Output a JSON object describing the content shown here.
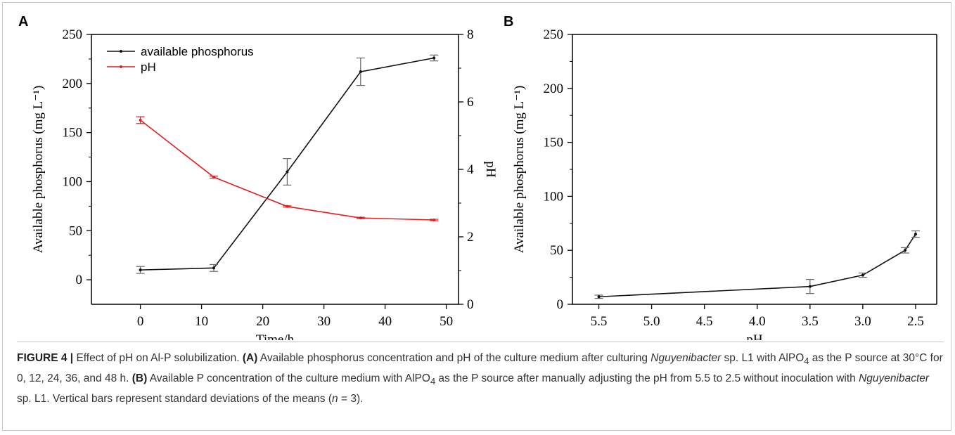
{
  "panels": [
    {
      "letter": "A"
    },
    {
      "letter": "B"
    }
  ],
  "chart_data": [
    {
      "type": "line",
      "panel": "A",
      "xlabel": "Time/h",
      "ylabel": "Available phosphorus (mg L⁻¹)",
      "y2label": "pH",
      "xlim": [
        -8,
        52
      ],
      "ylim": [
        -25,
        250
      ],
      "y2lim": [
        0,
        8
      ],
      "xticks": [
        0,
        10,
        20,
        30,
        40,
        50
      ],
      "yticks": [
        0,
        50,
        100,
        150,
        200,
        250
      ],
      "y2ticks": [
        0,
        2,
        4,
        6,
        8
      ],
      "legend_position": "top-left",
      "series": [
        {
          "name": "available phosphorus",
          "axis": "left",
          "color": "#111111",
          "x": [
            0,
            12,
            24,
            36,
            48
          ],
          "y": [
            10,
            12,
            110,
            212,
            226
          ],
          "err": [
            3.5,
            3.5,
            13.5,
            14,
            3
          ]
        },
        {
          "name": "pH",
          "axis": "right",
          "color": "#e02020",
          "x": [
            0,
            12,
            24,
            36,
            48
          ],
          "y": [
            5.46,
            3.77,
            2.9,
            2.56,
            2.5
          ],
          "err": [
            0.1,
            0.03,
            0.02,
            0.02,
            0.02
          ]
        }
      ]
    },
    {
      "type": "line",
      "panel": "B",
      "xlabel": "pH",
      "ylabel": "Available phosphorus (mg L⁻¹)",
      "xlim": [
        5.75,
        2.3
      ],
      "ylim": [
        0,
        250
      ],
      "xticks": [
        5.5,
        5.0,
        4.5,
        4.0,
        3.5,
        3.0,
        2.5
      ],
      "xtick_labels": [
        "5.5",
        "5.0",
        "4.5",
        "4.0",
        "3.5",
        "3.0",
        "2.5"
      ],
      "yticks": [
        0,
        50,
        100,
        150,
        200,
        250
      ],
      "series": [
        {
          "color": "#111111",
          "x": [
            5.5,
            3.5,
            3.0,
            2.6,
            2.5
          ],
          "y": [
            7,
            16.5,
            27,
            50,
            65
          ],
          "err": [
            1.5,
            6.5,
            2,
            2.5,
            3
          ]
        }
      ]
    }
  ],
  "caption": {
    "label": "FIGURE 4 |",
    "p1": " Effect of pH on Al-P solubilization. ",
    "a_label": "(A)",
    "p2": " Available phosphorus concentration and pH of the culture medium after culturing ",
    "organism": "Nguyenibacter",
    "p3": " sp. L1 with AlPO",
    "sub1": "4",
    "p4": " as the P source at 30°C for 0, 12, 24, 36, and 48 h. ",
    "b_label": "(B)",
    "p5": " Available P concentration of the culture medium with AlPO",
    "sub2": "4",
    "p6": " as the P source after manually adjusting the pH from 5.5 to 2.5 without inoculation with ",
    "organism2": "Nguyenibacter",
    "p7": " sp. L1. Vertical bars represent standard deviations of the means (",
    "n_var": "n",
    "p8": " = 3)."
  }
}
